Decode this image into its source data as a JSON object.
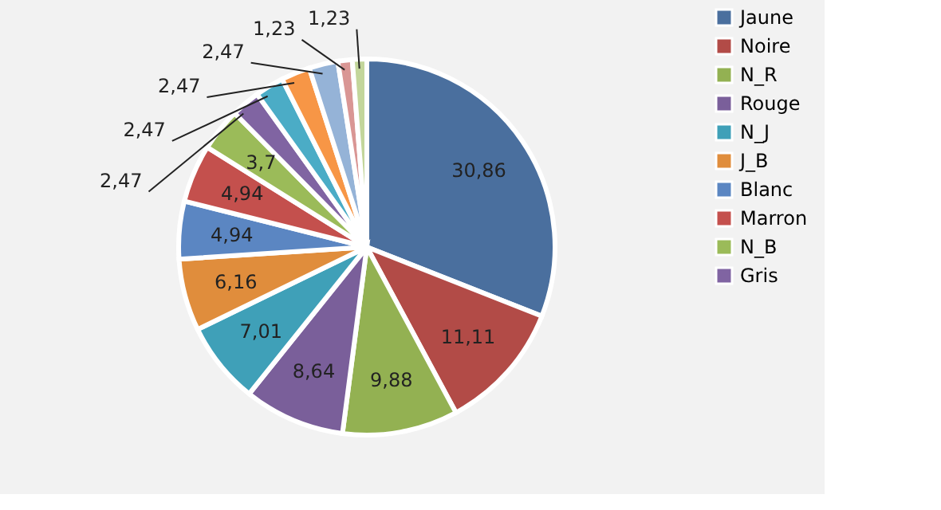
{
  "chart_data": {
    "type": "pie",
    "categories": [
      "Jaune",
      "Noire",
      "N_R",
      "Rouge",
      "N_J",
      "J_B",
      "Blanc",
      "Marron",
      "N_B",
      "Gris",
      null,
      null,
      null,
      null,
      null
    ],
    "values": [
      30.86,
      11.11,
      9.88,
      8.64,
      7.01,
      6.16,
      4.94,
      4.94,
      3.7,
      2.47,
      2.47,
      2.47,
      2.47,
      1.23,
      1.23
    ],
    "colors": [
      "#4a6f9e",
      "#b24b47",
      "#93b152",
      "#7a5f9a",
      "#3fa0b8",
      "#e08d3c",
      "#5b86c2",
      "#c4504d",
      "#9bbb59",
      "#8064a2",
      "#4bacc6",
      "#f79646",
      "#95b3d7",
      "#d99694",
      "#c3d69b"
    ],
    "value_labels": [
      "30,86",
      "11,11",
      "9,88",
      "8,64",
      "7,01",
      "6,16",
      "4,94",
      "4,94",
      "3,7",
      "2,47",
      "2,47",
      "2,47",
      "2,47",
      "1,23",
      "1,23"
    ],
    "legend": "right"
  }
}
